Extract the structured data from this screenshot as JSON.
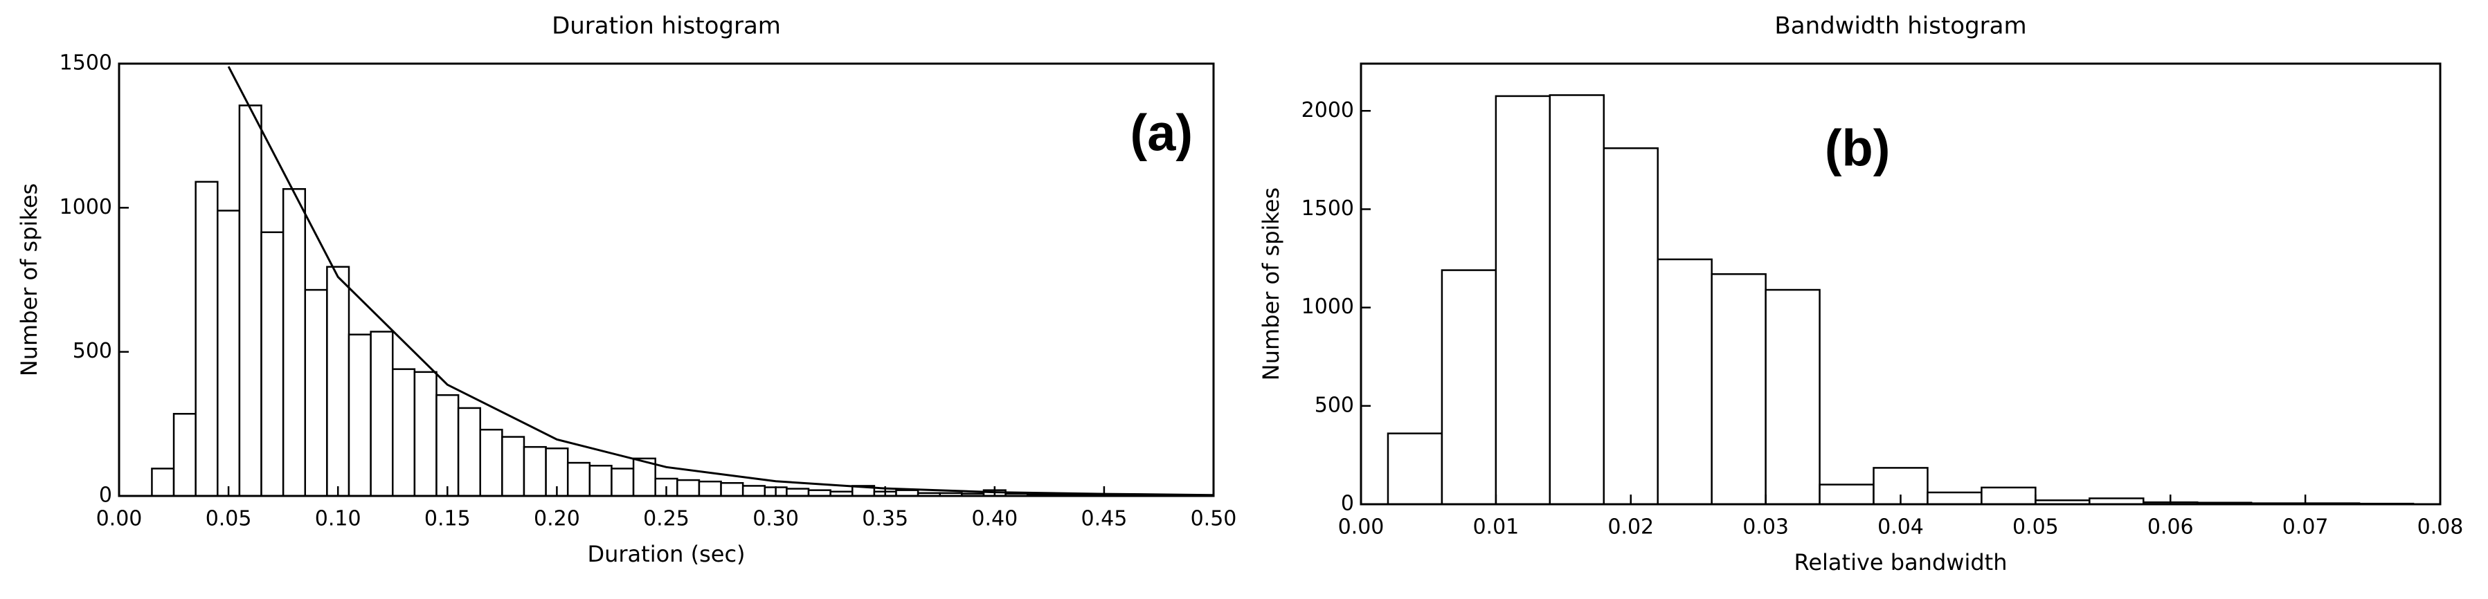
{
  "chart_data": [
    {
      "type": "histogram",
      "title": "Duration histogram",
      "x_label": "Duration (sec)",
      "y_label": "Number of spikes",
      "annotation": "(a)",
      "bins": [
        0.015,
        0.025,
        0.035,
        0.045,
        0.055,
        0.065,
        0.075,
        0.085,
        0.095,
        0.105,
        0.115,
        0.125,
        0.135,
        0.145,
        0.155,
        0.165,
        0.175,
        0.185,
        0.195,
        0.205,
        0.215,
        0.225,
        0.235,
        0.245,
        0.255,
        0.265,
        0.275,
        0.285,
        0.295,
        0.305,
        0.315,
        0.325,
        0.335,
        0.345,
        0.355,
        0.365,
        0.375,
        0.385,
        0.395,
        0.405,
        0.415,
        0.425,
        0.435,
        0.445,
        0.455,
        0.465,
        0.475,
        0.485,
        0.495
      ],
      "counts": [
        95,
        285,
        1090,
        990,
        1355,
        915,
        1065,
        715,
        795,
        560,
        570,
        440,
        430,
        350,
        305,
        230,
        205,
        170,
        165,
        115,
        105,
        95,
        130,
        60,
        55,
        50,
        45,
        35,
        30,
        25,
        20,
        15,
        35,
        15,
        20,
        10,
        10,
        8,
        20,
        8,
        5,
        5,
        3,
        3,
        2,
        2,
        2,
        1
      ],
      "curve": {
        "x": [
          0.05,
          0.1,
          0.15,
          0.2,
          0.25,
          0.3,
          0.35,
          0.4,
          0.45,
          0.5
        ],
        "values": [
          1490,
          760,
          386,
          196,
          100,
          51,
          26,
          13,
          7,
          3
        ]
      },
      "color": "#ffffff",
      "xlim": [
        0,
        0.5
      ],
      "xticks": [
        {
          "value": 0,
          "label": "0.00"
        },
        {
          "value": 0.05,
          "label": "0.05"
        },
        {
          "value": 0.1,
          "label": "0.10"
        },
        {
          "value": 0.15,
          "label": "0.15"
        },
        {
          "value": 0.2,
          "label": "0.20"
        },
        {
          "value": 0.25,
          "label": "0.25"
        },
        {
          "value": 0.3,
          "label": "0.30"
        },
        {
          "value": 0.35,
          "label": "0.35"
        },
        {
          "value": 0.4,
          "label": "0.40"
        },
        {
          "value": 0.45,
          "label": "0.45"
        },
        {
          "value": 0.5,
          "label": "0.50"
        }
      ],
      "ylim": [
        0,
        1500
      ],
      "yticks": [
        0,
        500,
        1000,
        1500
      ]
    },
    {
      "type": "histogram",
      "title": "Bandwidth histogram",
      "x_label": "Relative bandwidth",
      "y_label": "Number of spikes",
      "annotation": "(b)",
      "bins": [
        0.002,
        0.006,
        0.01,
        0.014,
        0.018,
        0.022,
        0.026,
        0.03,
        0.034,
        0.038,
        0.042,
        0.046,
        0.05,
        0.054,
        0.058,
        0.062,
        0.066,
        0.07,
        0.074,
        0.078
      ],
      "counts": [
        360,
        1190,
        2075,
        2080,
        1810,
        1245,
        1170,
        1090,
        100,
        185,
        60,
        85,
        20,
        30,
        10,
        8,
        5,
        5,
        3
      ],
      "color": "#ffffff",
      "xlim": [
        0,
        0.08
      ],
      "xticks": [
        {
          "value": 0,
          "label": "0.00"
        },
        {
          "value": 0.01,
          "label": "0.01"
        },
        {
          "value": 0.02,
          "label": "0.02"
        },
        {
          "value": 0.03,
          "label": "0.03"
        },
        {
          "value": 0.04,
          "label": "0.04"
        },
        {
          "value": 0.05,
          "label": "0.05"
        },
        {
          "value": 0.06,
          "label": "0.06"
        },
        {
          "value": 0.07,
          "label": "0.07"
        },
        {
          "value": 0.08,
          "label": "0.08"
        }
      ],
      "ylim": [
        0,
        2240
      ],
      "yticks": [
        0,
        500,
        1000,
        1500,
        2000
      ]
    }
  ]
}
